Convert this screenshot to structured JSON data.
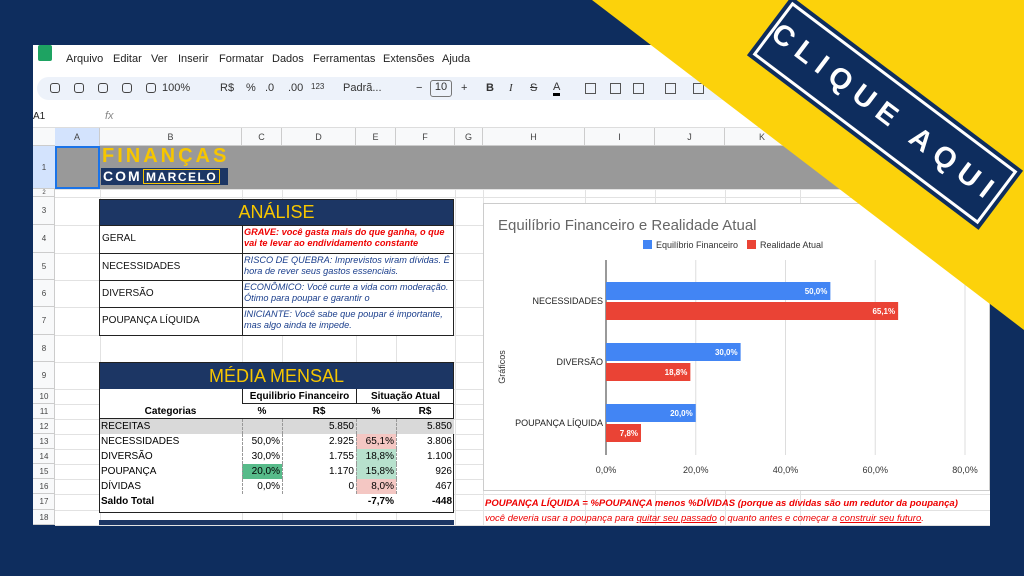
{
  "menu": [
    "Arquivo",
    "Editar",
    "Ver",
    "Inserir",
    "Formatar",
    "Dados",
    "Ferramentas",
    "Extensões",
    "Ajuda"
  ],
  "toolbar": {
    "zoom": "100%",
    "currency": "R$",
    "percent": "%",
    "decrease_decimals": ".0",
    "increase_decimals": ".00",
    "number_format": "123",
    "font": "Padrã...",
    "minus": "−",
    "font_size": "10",
    "plus": "+",
    "bold": "B",
    "italic": "I",
    "strikethrough": "S",
    "text_color": "A"
  },
  "formula_bar": {
    "cell": "A1",
    "fx": "fx"
  },
  "column_headers": [
    "A",
    "B",
    "C",
    "D",
    "E",
    "F",
    "G",
    "H",
    "I",
    "J",
    "K"
  ],
  "row_headers": [
    "1",
    "2",
    "3",
    "4",
    "5",
    "6",
    "7",
    "8",
    "9",
    "10",
    "11",
    "12",
    "13",
    "14",
    "15",
    "16",
    "17",
    "18"
  ],
  "logo": {
    "top": "FINANÇAS",
    "bottom_left": "COM",
    "bottom_right": "MARCELO"
  },
  "analysis": {
    "title": "ANÁLISE",
    "rows": [
      {
        "label": "GERAL",
        "text": "GRAVE: você gasta mais do que ganha, o que vai te levar ao endividamento constante"
      },
      {
        "label": "NECESSIDADES",
        "text": "RISCO DE QUEBRA: Imprevistos viram dívidas. É hora de rever seus gastos essenciais."
      },
      {
        "label": "DIVERSÃO",
        "text": "ECONÔMICO: Você curte a vida com moderação. Ótimo para poupar e garantir o"
      },
      {
        "label": "POUPANÇA LÍQUIDA",
        "text": "INICIANTE: Você sabe que poupar é importante, mas algo ainda te impede."
      }
    ]
  },
  "monthly": {
    "title": "MÉDIA MENSAL",
    "groups": [
      "Equilibrio Financeiro",
      "Situação Atual"
    ],
    "header": [
      "Categorias",
      "%",
      "R$",
      "%",
      "R$"
    ],
    "rows": [
      [
        "RECEITAS",
        null,
        "5.850",
        null,
        "5.850"
      ],
      [
        "NECESSIDADES",
        "50,0%",
        "2.925",
        "65,1%",
        "3.806"
      ],
      [
        "DIVERSÃO",
        "30,0%",
        "1.755",
        "18,8%",
        "1.100"
      ],
      [
        "POUPANÇA",
        "20,0%",
        "1.170",
        "15,8%",
        "926"
      ],
      [
        "DÍVIDAS",
        "0,0%",
        "0",
        "8,0%",
        "467"
      ],
      [
        "Saldo Total",
        null,
        null,
        "-7,7%",
        "-448"
      ]
    ]
  },
  "chart_data": {
    "type": "bar",
    "orientation": "horizontal",
    "title": "Equilíbrio Financeiro e Realidade Atual",
    "y_label": "Gráficos",
    "categories": [
      "NECESSIDADES",
      "DIVERSÃO",
      "POUPANÇA LÍQUIDA"
    ],
    "series": [
      {
        "name": "Equilíbrio Financeiro",
        "color": "#4285f4",
        "values": [
          50,
          30,
          20
        ],
        "value_labels": [
          "50,0%",
          "30,0%",
          "20,0%"
        ]
      },
      {
        "name": "Realidade Atual",
        "color": "#ea4335",
        "values": [
          65.1,
          18.8,
          7.8
        ],
        "value_labels": [
          "65,1%",
          "18,8%",
          "7,8%"
        ]
      }
    ],
    "xlim": [
      0,
      80
    ],
    "xticks": [
      {
        "value": 0,
        "label": "0,0%"
      },
      {
        "value": 20,
        "label": "20,0%"
      },
      {
        "value": 40,
        "label": "40,0%"
      },
      {
        "value": 60,
        "label": "60,0%"
      },
      {
        "value": 80,
        "label": "80,0%"
      }
    ],
    "grid": true,
    "legend": "top"
  },
  "notes": {
    "formula": "POUPANÇA LÍQUIDA = %POUPANÇA menos %DÍVIDAS (porque as dívidas são um redutor da poupança)",
    "advice": [
      "você deveria usar a poupança para ",
      "quitar seu passado",
      " o quanto antes e começar a ",
      "construir seu futuro",
      "."
    ]
  },
  "banner": "CLIQUE AQUI"
}
